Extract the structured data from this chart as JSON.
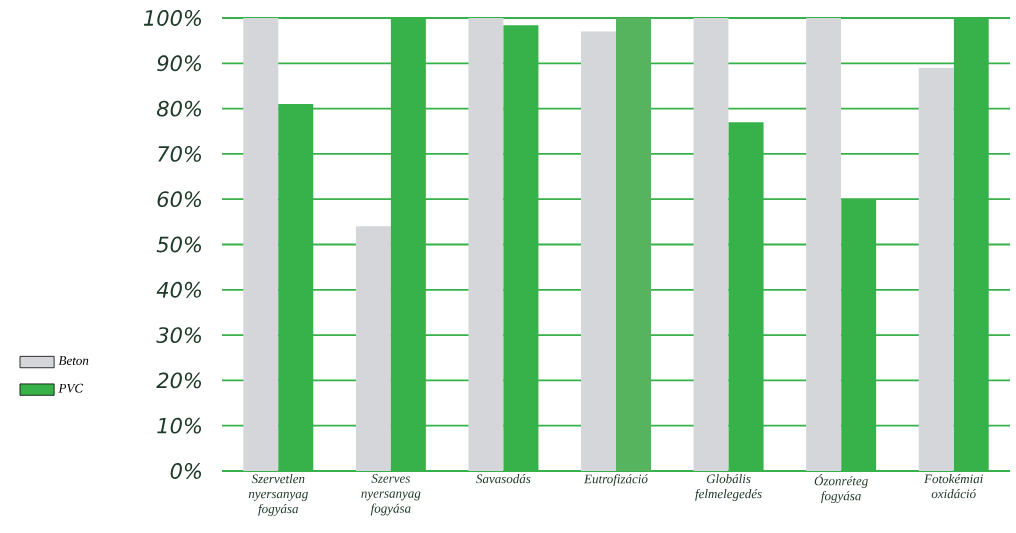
{
  "chart_data": {
    "type": "bar",
    "categories": [
      "Szervetlen nyersanyag fogyása",
      "Szerves nyersanyag fogyása",
      "Savasodás",
      "Eutrofizáció",
      "Globális felmelegedés",
      "Ózonréteg fogyása",
      "Fotokémiai oxidáció"
    ],
    "series": [
      {
        "name": "Beton",
        "color": "#d5d6da",
        "values": [
          100,
          54,
          100,
          97,
          100,
          100,
          89
        ]
      },
      {
        "name": "PVC",
        "color": "#37b24a",
        "colors": [
          "#37b24a",
          "#37b24a",
          "#37b24a",
          "#55b45d",
          "#37b24a",
          "#37b24a",
          "#37b24a"
        ],
        "values": [
          81,
          100,
          98.4,
          100,
          77,
          60,
          100
        ]
      }
    ],
    "ylim": [
      0,
      100
    ],
    "yticks": [
      {
        "value": 0,
        "label": "0%"
      },
      {
        "value": 10,
        "label": "10%"
      },
      {
        "value": 20,
        "label": "20%"
      },
      {
        "value": 30,
        "label": "30%"
      },
      {
        "value": 40,
        "label": "40%"
      },
      {
        "value": 50,
        "label": "50%"
      },
      {
        "value": 60,
        "label": "60%"
      },
      {
        "value": 70,
        "label": "70%"
      },
      {
        "value": 80,
        "label": "80%"
      },
      {
        "value": 90,
        "label": "90%"
      },
      {
        "value": 100,
        "label": "100%"
      }
    ],
    "grid": "y",
    "legend": "left"
  }
}
